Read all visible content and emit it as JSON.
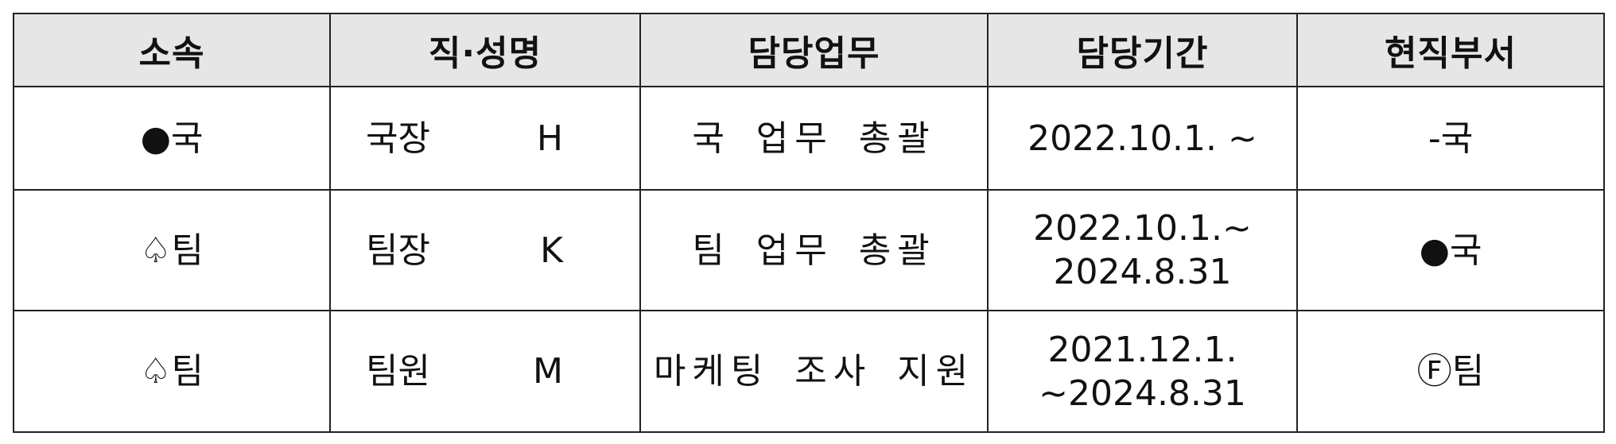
{
  "headers": [
    "소속",
    "직·성명",
    "담당업무",
    "담당기간",
    "현직부서"
  ],
  "rows": [
    {
      "affiliation": "●국",
      "position": "국장",
      "name": "H",
      "duty": "국 업무 총괄",
      "period_line1": "2022.10.1. ~",
      "period_line2": "",
      "current_dept": "-국"
    },
    {
      "affiliation": "♤팀",
      "position": "팀장",
      "name": "K",
      "duty": "팀 업무 총괄",
      "period_line1": "2022.10.1.~",
      "period_line2": "2024.8.31",
      "current_dept": "●국"
    },
    {
      "affiliation": "♤팀",
      "position": "팀원",
      "name": "M",
      "duty": "마케팅 조사 지원",
      "period_line1": "2021.12.1.",
      "period_line2": "~2024.8.31",
      "current_dept": "Ⓕ팀"
    }
  ],
  "colors": {
    "header_bg": "#e6e6e6",
    "border": "#222222",
    "text": "#111111"
  }
}
